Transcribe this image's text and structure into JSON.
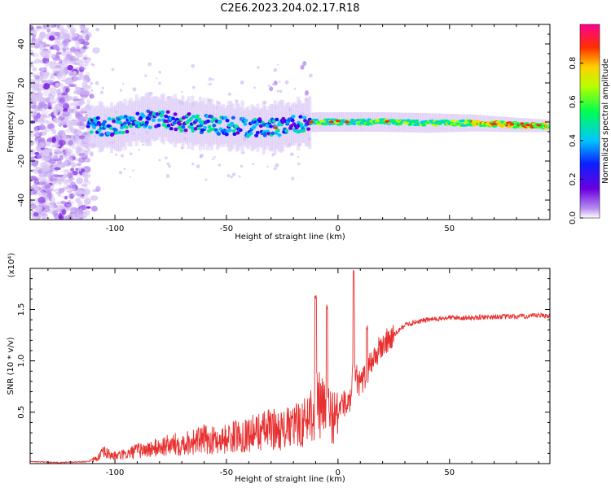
{
  "title": "C2E6.2023.204.02.17.R18",
  "chart_data": [
    {
      "type": "heatmap",
      "xlabel": "Height of straight line (km)",
      "ylabel": "Frequency (Hz)",
      "xlim": [
        -138,
        95
      ],
      "ylim": [
        -50,
        50
      ],
      "xticks": [
        -100,
        -50,
        0,
        50
      ],
      "yticks": [
        -40,
        -20,
        0,
        20,
        40
      ],
      "colorbar": {
        "label": "Normalized spectral amplitude",
        "range": [
          0.0,
          1.0
        ],
        "ticks": [
          0.0,
          0.2,
          0.4,
          0.6,
          0.8
        ],
        "colormap": "rainbow (violet → blue → cyan → green → yellow → red → magenta)"
      },
      "features": {
        "noise_region_x": [
          -138,
          -112
        ],
        "signal_band_center_hz": [
          [
            -112,
            -2
          ],
          [
            -100,
            -3
          ],
          [
            -90,
            1
          ],
          [
            -80,
            2
          ],
          [
            -70,
            0
          ],
          [
            -60,
            -1
          ],
          [
            -50,
            -2
          ],
          [
            -40,
            -3
          ],
          [
            -30,
            -3
          ],
          [
            -20,
            -1
          ],
          [
            -10,
            0
          ],
          [
            0,
            0
          ],
          [
            20,
            0
          ],
          [
            40,
            -0.5
          ],
          [
            60,
            -0.5
          ],
          [
            80,
            -1.5
          ],
          [
            95,
            -2
          ]
        ]
      },
      "grid": false
    },
    {
      "type": "line",
      "xlabel": "Height of straight line (km)",
      "ylabel": "SNR (10 * v/v)",
      "y_multiplier": "(x10⁴)",
      "xlim": [
        -138,
        95
      ],
      "ylim": [
        0,
        1.9
      ],
      "xticks": [
        -100,
        -50,
        0,
        50
      ],
      "yticks": [
        0.5,
        1.0,
        1.5
      ],
      "series": [
        {
          "color": "#e83030",
          "x": [
            -138,
            -125,
            -112,
            -108,
            -105,
            -100,
            -95,
            -90,
            -85,
            -80,
            -75,
            -70,
            -65,
            -60,
            -55,
            -50,
            -45,
            -40,
            -35,
            -30,
            -25,
            -20,
            -15,
            -10,
            -5,
            0,
            2,
            5,
            7,
            10,
            12,
            15,
            20,
            25,
            30,
            35,
            40,
            50,
            60,
            70,
            80,
            90,
            95
          ],
          "y": [
            0.02,
            0.01,
            0.02,
            0.06,
            0.12,
            0.08,
            0.1,
            0.14,
            0.15,
            0.18,
            0.2,
            0.22,
            0.24,
            0.26,
            0.25,
            0.27,
            0.3,
            0.32,
            0.35,
            0.38,
            0.36,
            0.4,
            0.45,
            0.65,
            0.55,
            0.5,
            0.6,
            0.55,
            0.9,
            0.75,
            0.85,
            1.0,
            1.15,
            1.25,
            1.35,
            1.38,
            1.4,
            1.42,
            1.42,
            1.43,
            1.43,
            1.44,
            1.44
          ],
          "peaks": [
            [
              -10,
              1.65
            ],
            [
              -5,
              1.55
            ],
            [
              7,
              1.9
            ],
            [
              13,
              1.35
            ]
          ]
        }
      ],
      "grid": false
    }
  ]
}
